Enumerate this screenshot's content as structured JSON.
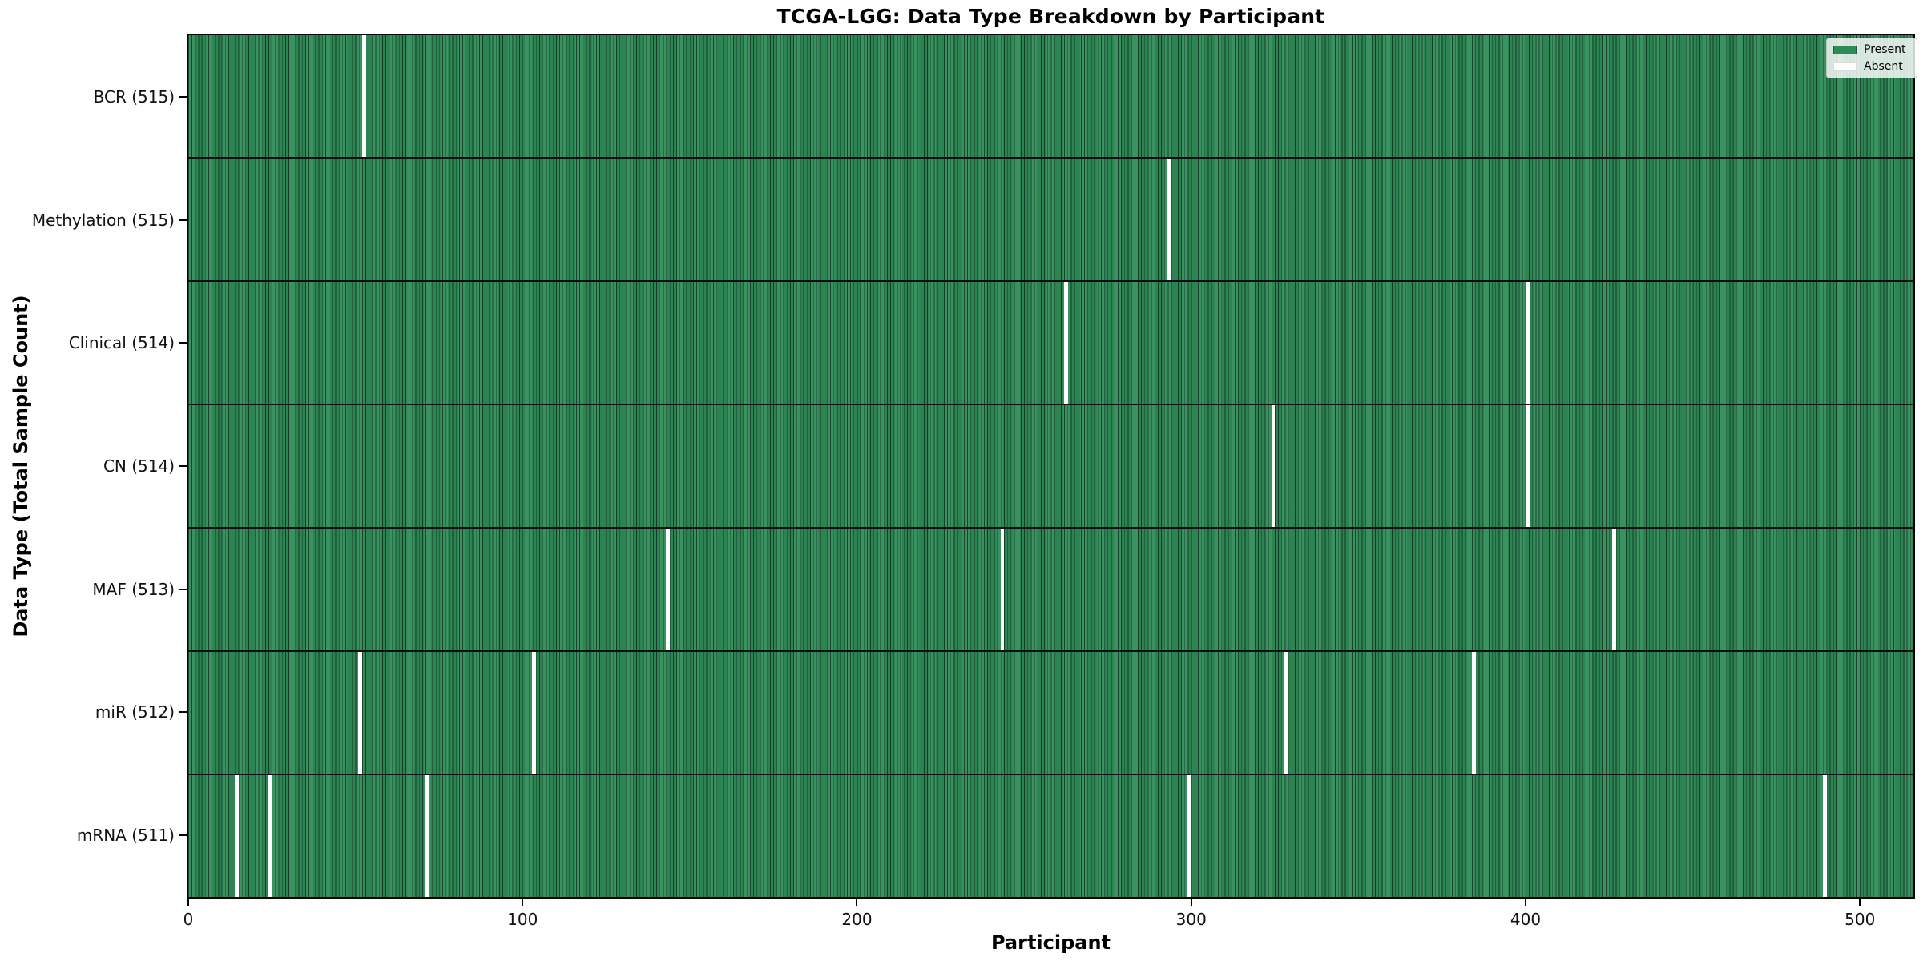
{
  "title": "TCGA-LGG: Data Type Breakdown by Participant",
  "colors": {
    "present": "#2e8b57",
    "absent": "#ffffff",
    "cell_edge": "rgba(0,0,0,0.55)",
    "row_separator": "#101010",
    "plot_border": "#000000"
  },
  "chart_data": {
    "type": "heatmap",
    "title": "TCGA-LGG: Data Type Breakdown by Participant",
    "xlabel": "Participant",
    "ylabel": "Data Type (Total Sample Count)",
    "x_ticks": [
      0,
      100,
      200,
      300,
      400,
      500
    ],
    "x_range": [
      0,
      516
    ],
    "n_participants": 516,
    "grid": false,
    "legend_position": "upper right",
    "legend": [
      {
        "label": "Present",
        "color": "#2e8b57"
      },
      {
        "label": "Absent",
        "color": "#ffffff"
      }
    ],
    "rows": [
      {
        "label": "BCR (515)",
        "data_type": "BCR",
        "total_samples": 515,
        "absent_participants": [
          52
        ]
      },
      {
        "label": "Methylation (515)",
        "data_type": "Methylation",
        "total_samples": 515,
        "absent_participants": [
          293
        ]
      },
      {
        "label": "Clinical (514)",
        "data_type": "Clinical",
        "total_samples": 514,
        "absent_participants": [
          262,
          400
        ]
      },
      {
        "label": "CN (514)",
        "data_type": "CN",
        "total_samples": 514,
        "absent_participants": [
          324,
          400
        ]
      },
      {
        "label": "MAF (513)",
        "data_type": "MAF",
        "total_samples": 513,
        "absent_participants": [
          143,
          243,
          426
        ]
      },
      {
        "label": "miR (512)",
        "data_type": "miR",
        "total_samples": 512,
        "absent_participants": [
          51,
          103,
          328,
          384
        ]
      },
      {
        "label": "mRNA (511)",
        "data_type": "mRNA",
        "total_samples": 511,
        "absent_participants": [
          14,
          24,
          71,
          299,
          489
        ]
      }
    ]
  }
}
